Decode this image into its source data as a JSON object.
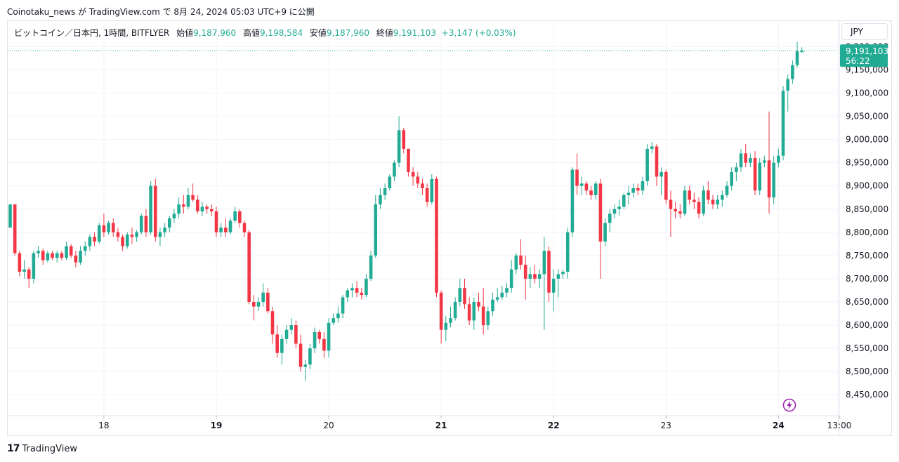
{
  "header": {
    "publisher_line": "Coinotaku_news が TradingView.com で 8月 24, 2024 05:03 UTC+9 に公開"
  },
  "legend": {
    "symbol": "ビットコイン／日本円, 1時間, BITFLYER",
    "open_label": "始値",
    "open": "9,187,960",
    "high_label": "高値",
    "high": "9,198,584",
    "low_label": "安値",
    "low": "9,187,960",
    "close_label": "終値",
    "close": "9,191,103",
    "change": "+3,147 (+0.03%)"
  },
  "currency_button": "JPY",
  "price_tag": {
    "price": "9,191,103",
    "countdown": "56:22"
  },
  "footer": {
    "logo_mark": "17",
    "brand": "TradingView"
  },
  "colors": {
    "up": "#22ab94",
    "down": "#f23645",
    "grid": "#f0f3fa",
    "axis_text": "#131722"
  },
  "chart_data": {
    "type": "candlestick",
    "interval": "1h",
    "y_axis_labels": [
      "8,450,000",
      "8,500,000",
      "8,550,000",
      "8,600,000",
      "8,650,000",
      "8,700,000",
      "8,750,000",
      "8,800,000",
      "8,850,000",
      "8,900,000",
      "8,950,000",
      "9,000,000",
      "9,050,000",
      "9,100,000",
      "9,150,000",
      "9,200,000"
    ],
    "y_ticks": [
      8450000,
      8500000,
      8550000,
      8600000,
      8650000,
      8700000,
      8750000,
      8800000,
      8850000,
      8900000,
      8950000,
      9000000,
      9050000,
      9100000,
      9150000,
      9200000
    ],
    "ylim": [
      8405000,
      9255000
    ],
    "x_ticks": [
      {
        "label": "18",
        "index": 20
      },
      {
        "label": "19",
        "index": 44
      },
      {
        "label": "20",
        "index": 68
      },
      {
        "label": "21",
        "index": 92
      },
      {
        "label": "22",
        "index": 116
      },
      {
        "label": "23",
        "index": 140
      },
      {
        "label": "24",
        "index": 164
      },
      {
        "label": "13:00",
        "index": 177
      }
    ],
    "bold_x_ticks": [
      "19",
      "21",
      "22",
      "24"
    ],
    "last_price": 9191103,
    "candles": [
      [
        8810000,
        8860000,
        8810000,
        8860000
      ],
      [
        8860000,
        8860000,
        8750000,
        8755000
      ],
      [
        8755000,
        8760000,
        8705000,
        8715000
      ],
      [
        8715000,
        8740000,
        8700000,
        8720000
      ],
      [
        8720000,
        8725000,
        8680000,
        8700000
      ],
      [
        8700000,
        8760000,
        8690000,
        8755000
      ],
      [
        8755000,
        8770000,
        8745000,
        8760000
      ],
      [
        8760000,
        8765000,
        8730000,
        8740000
      ],
      [
        8740000,
        8760000,
        8735000,
        8755000
      ],
      [
        8755000,
        8760000,
        8740000,
        8745000
      ],
      [
        8745000,
        8760000,
        8735000,
        8755000
      ],
      [
        8755000,
        8760000,
        8740000,
        8745000
      ],
      [
        8745000,
        8780000,
        8740000,
        8770000
      ],
      [
        8770000,
        8775000,
        8745000,
        8750000
      ],
      [
        8750000,
        8760000,
        8725000,
        8735000
      ],
      [
        8735000,
        8770000,
        8730000,
        8760000
      ],
      [
        8760000,
        8780000,
        8750000,
        8770000
      ],
      [
        8770000,
        8795000,
        8760000,
        8790000
      ],
      [
        8790000,
        8800000,
        8770000,
        8780000
      ],
      [
        8780000,
        8820000,
        8775000,
        8815000
      ],
      [
        8815000,
        8840000,
        8790000,
        8800000
      ],
      [
        8800000,
        8825000,
        8795000,
        8820000
      ],
      [
        8820000,
        8830000,
        8790000,
        8800000
      ],
      [
        8800000,
        8810000,
        8780000,
        8790000
      ],
      [
        8790000,
        8795000,
        8760000,
        8770000
      ],
      [
        8770000,
        8800000,
        8765000,
        8795000
      ],
      [
        8795000,
        8810000,
        8775000,
        8790000
      ],
      [
        8790000,
        8805000,
        8780000,
        8800000
      ],
      [
        8800000,
        8840000,
        8795000,
        8835000
      ],
      [
        8835000,
        8850000,
        8790000,
        8800000
      ],
      [
        8800000,
        8910000,
        8795000,
        8900000
      ],
      [
        8900000,
        8915000,
        8780000,
        8790000
      ],
      [
        8790000,
        8810000,
        8770000,
        8800000
      ],
      [
        8800000,
        8820000,
        8790000,
        8810000
      ],
      [
        8810000,
        8835000,
        8800000,
        8830000
      ],
      [
        8830000,
        8850000,
        8820000,
        8840000
      ],
      [
        8840000,
        8875000,
        8830000,
        8860000
      ],
      [
        8860000,
        8880000,
        8840000,
        8855000
      ],
      [
        8855000,
        8895000,
        8850000,
        8880000
      ],
      [
        8880000,
        8905000,
        8865000,
        8870000
      ],
      [
        8870000,
        8880000,
        8840000,
        8845000
      ],
      [
        8845000,
        8865000,
        8835000,
        8855000
      ],
      [
        8855000,
        8860000,
        8840000,
        8850000
      ],
      [
        8850000,
        8860000,
        8835000,
        8845000
      ],
      [
        8845000,
        8855000,
        8790000,
        8800000
      ],
      [
        8800000,
        8820000,
        8790000,
        8810000
      ],
      [
        8810000,
        8830000,
        8790000,
        8800000
      ],
      [
        8800000,
        8830000,
        8795000,
        8825000
      ],
      [
        8825000,
        8855000,
        8820000,
        8845000
      ],
      [
        8845000,
        8850000,
        8810000,
        8820000
      ],
      [
        8820000,
        8825000,
        8790000,
        8800000
      ],
      [
        8800000,
        8805000,
        8645000,
        8650000
      ],
      [
        8650000,
        8665000,
        8610000,
        8640000
      ],
      [
        8640000,
        8660000,
        8630000,
        8650000
      ],
      [
        8650000,
        8690000,
        8640000,
        8670000
      ],
      [
        8670000,
        8680000,
        8625000,
        8630000
      ],
      [
        8630000,
        8640000,
        8560000,
        8580000
      ],
      [
        8580000,
        8600000,
        8530000,
        8540000
      ],
      [
        8540000,
        8580000,
        8515000,
        8570000
      ],
      [
        8570000,
        8600000,
        8560000,
        8590000
      ],
      [
        8590000,
        8615000,
        8580000,
        8600000
      ],
      [
        8600000,
        8610000,
        8550000,
        8560000
      ],
      [
        8560000,
        8580000,
        8500000,
        8510000
      ],
      [
        8510000,
        8525000,
        8480000,
        8515000
      ],
      [
        8515000,
        8560000,
        8505000,
        8550000
      ],
      [
        8550000,
        8595000,
        8540000,
        8585000
      ],
      [
        8585000,
        8590000,
        8560000,
        8570000
      ],
      [
        8570000,
        8585000,
        8530000,
        8545000
      ],
      [
        8545000,
        8615000,
        8530000,
        8605000
      ],
      [
        8605000,
        8625000,
        8600000,
        8615000
      ],
      [
        8615000,
        8640000,
        8605000,
        8625000
      ],
      [
        8625000,
        8665000,
        8615000,
        8660000
      ],
      [
        8660000,
        8680000,
        8650000,
        8675000
      ],
      [
        8675000,
        8690000,
        8660000,
        8680000
      ],
      [
        8680000,
        8695000,
        8660000,
        8670000
      ],
      [
        8670000,
        8680000,
        8655000,
        8665000
      ],
      [
        8665000,
        8710000,
        8660000,
        8700000
      ],
      [
        8700000,
        8760000,
        8695000,
        8750000
      ],
      [
        8750000,
        8880000,
        8745000,
        8860000
      ],
      [
        8860000,
        8895000,
        8850000,
        8880000
      ],
      [
        8880000,
        8905000,
        8870000,
        8895000
      ],
      [
        8895000,
        8925000,
        8890000,
        8920000
      ],
      [
        8920000,
        8955000,
        8910000,
        8950000
      ],
      [
        8950000,
        9050000,
        8940000,
        9020000
      ],
      [
        9020000,
        9025000,
        8970000,
        8980000
      ],
      [
        8980000,
        8980000,
        8920000,
        8930000
      ],
      [
        8930000,
        8940000,
        8900000,
        8920000
      ],
      [
        8920000,
        8930000,
        8895000,
        8905000
      ],
      [
        8905000,
        8915000,
        8880000,
        8895000
      ],
      [
        8895000,
        8905000,
        8855000,
        8865000
      ],
      [
        8865000,
        8925000,
        8860000,
        8915000
      ],
      [
        8915000,
        8920000,
        8660000,
        8670000
      ],
      [
        8670000,
        8675000,
        8560000,
        8590000
      ],
      [
        8590000,
        8620000,
        8565000,
        8605000
      ],
      [
        8605000,
        8640000,
        8595000,
        8615000
      ],
      [
        8615000,
        8660000,
        8610000,
        8650000
      ],
      [
        8650000,
        8700000,
        8640000,
        8680000
      ],
      [
        8680000,
        8700000,
        8635000,
        8645000
      ],
      [
        8645000,
        8660000,
        8600000,
        8610000
      ],
      [
        8610000,
        8660000,
        8590000,
        8650000
      ],
      [
        8650000,
        8670000,
        8630000,
        8640000
      ],
      [
        8640000,
        8680000,
        8580000,
        8600000
      ],
      [
        8600000,
        8640000,
        8590000,
        8630000
      ],
      [
        8630000,
        8670000,
        8620000,
        8655000
      ],
      [
        8655000,
        8680000,
        8650000,
        8660000
      ],
      [
        8660000,
        8685000,
        8655000,
        8670000
      ],
      [
        8670000,
        8690000,
        8660000,
        8680000
      ],
      [
        8680000,
        8740000,
        8670000,
        8720000
      ],
      [
        8720000,
        8755000,
        8710000,
        8750000
      ],
      [
        8750000,
        8785000,
        8720000,
        8730000
      ],
      [
        8730000,
        8750000,
        8655000,
        8700000
      ],
      [
        8700000,
        8725000,
        8680000,
        8710000
      ],
      [
        8710000,
        8730000,
        8690000,
        8700000
      ],
      [
        8700000,
        8720000,
        8680000,
        8710000
      ],
      [
        8710000,
        8790000,
        8590000,
        8760000
      ],
      [
        8760000,
        8770000,
        8650000,
        8670000
      ],
      [
        8670000,
        8720000,
        8630000,
        8700000
      ],
      [
        8700000,
        8720000,
        8660000,
        8710000
      ],
      [
        8710000,
        8720000,
        8700000,
        8715000
      ],
      [
        8715000,
        8810000,
        8700000,
        8800000
      ],
      [
        8800000,
        8940000,
        8790000,
        8935000
      ],
      [
        8935000,
        8970000,
        8880000,
        8900000
      ],
      [
        8900000,
        8920000,
        8880000,
        8905000
      ],
      [
        8905000,
        8910000,
        8880000,
        8890000
      ],
      [
        8890000,
        8900000,
        8870000,
        8880000
      ],
      [
        8880000,
        8910000,
        8870000,
        8905000
      ],
      [
        8905000,
        8915000,
        8700000,
        8780000
      ],
      [
        8780000,
        8830000,
        8770000,
        8820000
      ],
      [
        8820000,
        8850000,
        8800000,
        8840000
      ],
      [
        8840000,
        8860000,
        8830000,
        8850000
      ],
      [
        8850000,
        8870000,
        8835000,
        8855000
      ],
      [
        8855000,
        8885000,
        8850000,
        8880000
      ],
      [
        8880000,
        8900000,
        8860000,
        8885000
      ],
      [
        8885000,
        8905000,
        8875000,
        8895000
      ],
      [
        8895000,
        8905000,
        8880000,
        8890000
      ],
      [
        8890000,
        8920000,
        8880000,
        8910000
      ],
      [
        8910000,
        8990000,
        8900000,
        8980000
      ],
      [
        8980000,
        8995000,
        8970000,
        8985000
      ],
      [
        8985000,
        8990000,
        8900000,
        8920000
      ],
      [
        8920000,
        8940000,
        8880000,
        8930000
      ],
      [
        8930000,
        8935000,
        8860000,
        8870000
      ],
      [
        8870000,
        8890000,
        8790000,
        8850000
      ],
      [
        8850000,
        8865000,
        8830000,
        8845000
      ],
      [
        8845000,
        8860000,
        8830000,
        8840000
      ],
      [
        8840000,
        8900000,
        8835000,
        8890000
      ],
      [
        8890000,
        8900000,
        8860000,
        8870000
      ],
      [
        8870000,
        8885000,
        8850000,
        8865000
      ],
      [
        8865000,
        8875000,
        8830000,
        8840000
      ],
      [
        8840000,
        8900000,
        8835000,
        8890000
      ],
      [
        8890000,
        8910000,
        8860000,
        8870000
      ],
      [
        8870000,
        8880000,
        8850000,
        8860000
      ],
      [
        8860000,
        8880000,
        8850000,
        8870000
      ],
      [
        8870000,
        8890000,
        8855000,
        8880000
      ],
      [
        8880000,
        8910000,
        8875000,
        8900000
      ],
      [
        8900000,
        8940000,
        8890000,
        8930000
      ],
      [
        8930000,
        8950000,
        8910000,
        8940000
      ],
      [
        8940000,
        8980000,
        8930000,
        8970000
      ],
      [
        8970000,
        8990000,
        8940000,
        8950000
      ],
      [
        8950000,
        8970000,
        8940000,
        8960000
      ],
      [
        8960000,
        8975000,
        8880000,
        8890000
      ],
      [
        8890000,
        8960000,
        8880000,
        8950000
      ],
      [
        8950000,
        8965000,
        8940000,
        8955000
      ],
      [
        8955000,
        9060000,
        8840000,
        8875000
      ],
      [
        8875000,
        8965000,
        8860000,
        8950000
      ],
      [
        8950000,
        8980000,
        8940000,
        8965000
      ],
      [
        8965000,
        9115000,
        8955000,
        9105000
      ],
      [
        9105000,
        9140000,
        9060000,
        9130000
      ],
      [
        9130000,
        9170000,
        9120000,
        9160000
      ],
      [
        9160000,
        9210000,
        9155000,
        9190000
      ],
      [
        9187960,
        9198584,
        9187960,
        9191103
      ]
    ]
  }
}
